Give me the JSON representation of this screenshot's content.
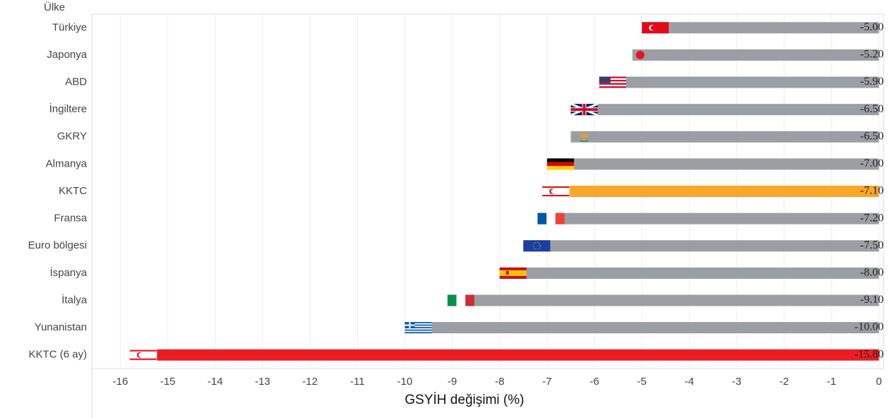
{
  "chart_data": {
    "type": "barh",
    "y_label": "Ülke",
    "x_label": "GSYİH değişimi (%)",
    "categories": [
      "Türkiye",
      "Japonya",
      "ABD",
      "İngiltere",
      "GKRY",
      "Almanya",
      "KKTC",
      "Fransa",
      "Euro bölgesi",
      "İspanya",
      "İtalya",
      "Yunanistan",
      "KKTC (6 ay)"
    ],
    "values": [
      -5.0,
      -5.2,
      -5.9,
      -6.5,
      -6.5,
      -7.0,
      -7.1,
      -7.2,
      -7.5,
      -8.0,
      -9.1,
      -10.0,
      -15.8
    ],
    "value_labels": [
      "-5.00",
      "-5.20",
      "-5.90",
      "-6.50",
      "-6.50",
      "-7.00",
      "-7.10",
      "-7.20",
      "-7.50",
      "-8.00",
      "-9.10",
      "-10.00",
      "-15.80"
    ],
    "colors": [
      "#9b9ea3",
      "#9b9ea3",
      "#9b9ea3",
      "#9b9ea3",
      "#9b9ea3",
      "#9b9ea3",
      "#f9a629",
      "#9b9ea3",
      "#9b9ea3",
      "#9b9ea3",
      "#9b9ea3",
      "#9b9ea3",
      "#ed1c24"
    ],
    "xlim": [
      -16.6,
      0.1
    ],
    "xticks": [
      -16,
      -15,
      -14,
      -13,
      -12,
      -11,
      -10,
      -9,
      -8,
      -7,
      -6,
      -5,
      -4,
      -3,
      -2,
      -1,
      0
    ],
    "grid": true
  }
}
